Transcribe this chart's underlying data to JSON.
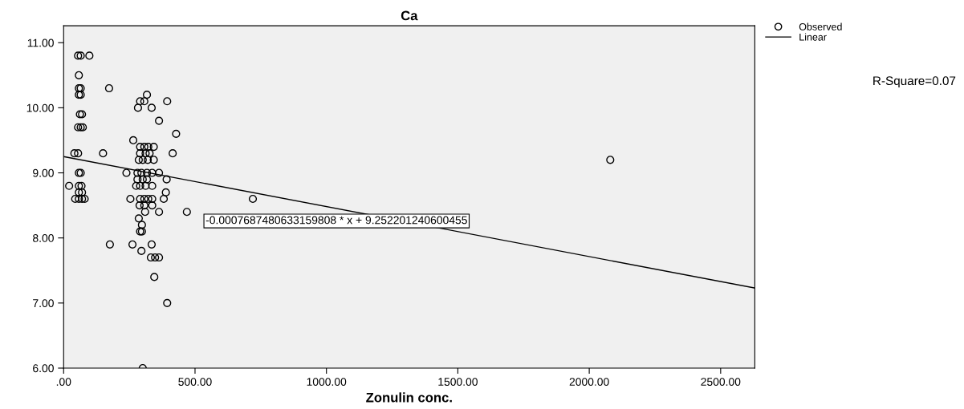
{
  "chart_data": {
    "type": "scatter",
    "title": "Ca",
    "xlabel": "Zonulin conc.",
    "xlim": [
      0,
      2630
    ],
    "ylim": [
      6,
      11.26
    ],
    "xticks": [
      {
        "value": 0,
        "label": ".00"
      },
      {
        "value": 500,
        "label": "500.00"
      },
      {
        "value": 1000,
        "label": "1000.00"
      },
      {
        "value": 1500,
        "label": "1500.00"
      },
      {
        "value": 2000,
        "label": "2000.00"
      },
      {
        "value": 2500,
        "label": "2500.00"
      }
    ],
    "yticks": [
      {
        "value": 6,
        "label": "6.00"
      },
      {
        "value": 7,
        "label": "7.00"
      },
      {
        "value": 8,
        "label": "8.00"
      },
      {
        "value": 9,
        "label": "9.00"
      },
      {
        "value": 10,
        "label": "10.00"
      },
      {
        "value": 11,
        "label": "11.00"
      }
    ],
    "grid": false,
    "legend": "top right",
    "series": [
      {
        "name": "Observed",
        "marker": "circle",
        "color": "#000000",
        "x": [
          55,
          65,
          98,
          58,
          58,
          65,
          58,
          65,
          62,
          70,
          55,
          65,
          73,
          41,
          55,
          150,
          58,
          65,
          21,
          58,
          68,
          58,
          70,
          44,
          58,
          70,
          80,
          173,
          176,
          239,
          254,
          265,
          262,
          283,
          291,
          307,
          317,
          335,
          394,
          363,
          428,
          415,
          291,
          307,
          322,
          343,
          291,
          312,
          327,
          286,
          301,
          320,
          343,
          281,
          296,
          317,
          337,
          363,
          281,
          301,
          317,
          392,
          276,
          291,
          312,
          337,
          389,
          291,
          307,
          322,
          337,
          381,
          289,
          307,
          337,
          310,
          363,
          469,
          286,
          298,
          291,
          298,
          335,
          296,
          332,
          348,
          363,
          345,
          394,
          301,
          720,
          2080
        ],
        "values": [
          10.8,
          10.8,
          10.8,
          10.5,
          10.3,
          10.3,
          10.2,
          10.2,
          9.9,
          9.9,
          9.7,
          9.7,
          9.7,
          9.3,
          9.3,
          9.3,
          9.0,
          9.0,
          8.8,
          8.8,
          8.8,
          8.7,
          8.7,
          8.6,
          8.6,
          8.6,
          8.6,
          10.3,
          7.9,
          9.0,
          8.6,
          9.5,
          7.9,
          10.0,
          10.1,
          10.1,
          10.2,
          10.0,
          10.1,
          9.8,
          9.6,
          9.3,
          9.4,
          9.4,
          9.4,
          9.4,
          9.3,
          9.3,
          9.3,
          9.2,
          9.2,
          9.2,
          9.2,
          9.0,
          9.0,
          9.0,
          9.0,
          9.0,
          8.9,
          8.9,
          8.9,
          8.9,
          8.8,
          8.8,
          8.8,
          8.8,
          8.7,
          8.6,
          8.6,
          8.6,
          8.6,
          8.6,
          8.5,
          8.5,
          8.5,
          8.4,
          8.4,
          8.4,
          8.3,
          8.2,
          8.1,
          8.1,
          7.9,
          7.8,
          7.7,
          7.7,
          7.7,
          7.4,
          7.0,
          6.0,
          8.6,
          9.2
        ]
      },
      {
        "name": "Linear",
        "type": "line",
        "color": "#000000",
        "x": [
          0,
          2630
        ],
        "values": [
          9.25,
          7.23
        ]
      }
    ],
    "annotations": [
      "-0.0007687480633159808 * x + 9.252201240600455",
      "R-Square=0.07"
    ]
  }
}
